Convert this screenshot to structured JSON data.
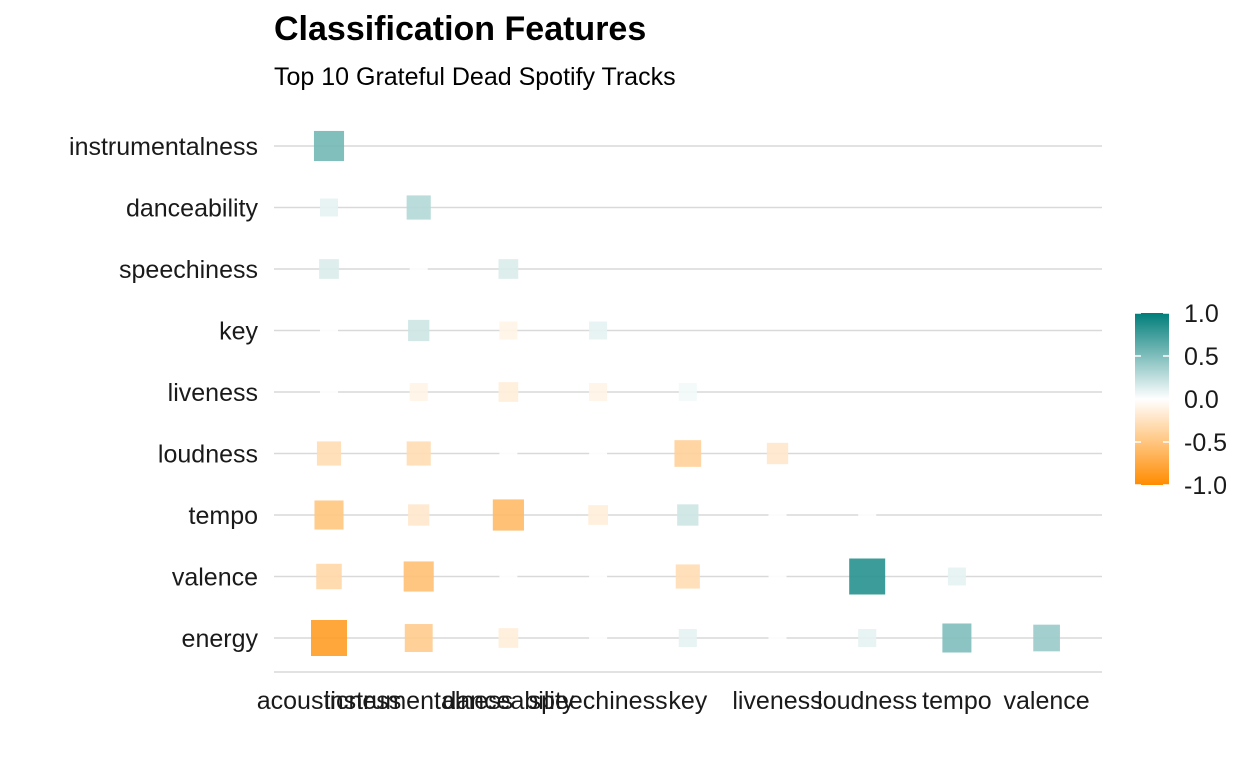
{
  "chart_data": {
    "type": "heatmap",
    "title": "Classification Features",
    "subtitle": "Top 10 Grateful Dead Spotify Tracks",
    "x_categories": [
      "acousticness",
      "instrumentalness",
      "danceability",
      "speechiness",
      "key",
      "liveness",
      "loudness",
      "tempo",
      "valence"
    ],
    "y_categories": [
      "instrumentalness",
      "danceability",
      "speechiness",
      "key",
      "liveness",
      "loudness",
      "tempo",
      "valence",
      "energy"
    ],
    "cells": [
      {
        "x": "acousticness",
        "y": "instrumentalness",
        "value": 0.55
      },
      {
        "x": "acousticness",
        "y": "danceability",
        "value": 0.1
      },
      {
        "x": "instrumentalness",
        "y": "danceability",
        "value": 0.3
      },
      {
        "x": "acousticness",
        "y": "speechiness",
        "value": 0.15
      },
      {
        "x": "instrumentalness",
        "y": "speechiness",
        "value": 0.0
      },
      {
        "x": "danceability",
        "y": "speechiness",
        "value": 0.15
      },
      {
        "x": "acousticness",
        "y": "key",
        "value": 0.0
      },
      {
        "x": "instrumentalness",
        "y": "key",
        "value": 0.2
      },
      {
        "x": "danceability",
        "y": "key",
        "value": -0.1
      },
      {
        "x": "speechiness",
        "y": "key",
        "value": 0.1
      },
      {
        "x": "acousticness",
        "y": "liveness",
        "value": 0.0
      },
      {
        "x": "instrumentalness",
        "y": "liveness",
        "value": -0.1
      },
      {
        "x": "danceability",
        "y": "liveness",
        "value": -0.15
      },
      {
        "x": "speechiness",
        "y": "liveness",
        "value": -0.1
      },
      {
        "x": "key",
        "y": "liveness",
        "value": 0.05
      },
      {
        "x": "acousticness",
        "y": "loudness",
        "value": -0.3
      },
      {
        "x": "instrumentalness",
        "y": "loudness",
        "value": -0.3
      },
      {
        "x": "danceability",
        "y": "loudness",
        "value": 0.0
      },
      {
        "x": "speechiness",
        "y": "loudness",
        "value": 0.0
      },
      {
        "x": "key",
        "y": "loudness",
        "value": -0.4
      },
      {
        "x": "liveness",
        "y": "loudness",
        "value": -0.2
      },
      {
        "x": "acousticness",
        "y": "tempo",
        "value": -0.5
      },
      {
        "x": "instrumentalness",
        "y": "tempo",
        "value": -0.2
      },
      {
        "x": "danceability",
        "y": "tempo",
        "value": -0.6
      },
      {
        "x": "speechiness",
        "y": "tempo",
        "value": -0.15
      },
      {
        "x": "key",
        "y": "tempo",
        "value": 0.2
      },
      {
        "x": "liveness",
        "y": "tempo",
        "value": 0.0
      },
      {
        "x": "loudness",
        "y": "tempo",
        "value": 0.0
      },
      {
        "x": "acousticness",
        "y": "valence",
        "value": -0.35
      },
      {
        "x": "instrumentalness",
        "y": "valence",
        "value": -0.55
      },
      {
        "x": "danceability",
        "y": "valence",
        "value": 0.0
      },
      {
        "x": "speechiness",
        "y": "valence",
        "value": 0.0
      },
      {
        "x": "key",
        "y": "valence",
        "value": -0.3
      },
      {
        "x": "liveness",
        "y": "valence",
        "value": 0.0
      },
      {
        "x": "loudness",
        "y": "valence",
        "value": 0.85
      },
      {
        "x": "tempo",
        "y": "valence",
        "value": 0.1
      },
      {
        "x": "acousticness",
        "y": "energy",
        "value": -0.85
      },
      {
        "x": "instrumentalness",
        "y": "energy",
        "value": -0.45
      },
      {
        "x": "danceability",
        "y": "energy",
        "value": -0.15
      },
      {
        "x": "speechiness",
        "y": "energy",
        "value": 0.0
      },
      {
        "x": "key",
        "y": "energy",
        "value": 0.1
      },
      {
        "x": "liveness",
        "y": "energy",
        "value": 0.0
      },
      {
        "x": "loudness",
        "y": "energy",
        "value": 0.1
      },
      {
        "x": "tempo",
        "y": "energy",
        "value": 0.5
      },
      {
        "x": "valence",
        "y": "energy",
        "value": 0.4
      }
    ],
    "color_scale": {
      "low": "#ff8c00",
      "mid": "#ffffff",
      "high": "#007d7a",
      "range": [
        -1.0,
        1.0
      ]
    },
    "legend": {
      "position": "right",
      "ticks": [
        "1.0",
        "0.5",
        "0.0",
        "-0.5",
        "-1.0"
      ]
    },
    "grid": "horizontal"
  }
}
